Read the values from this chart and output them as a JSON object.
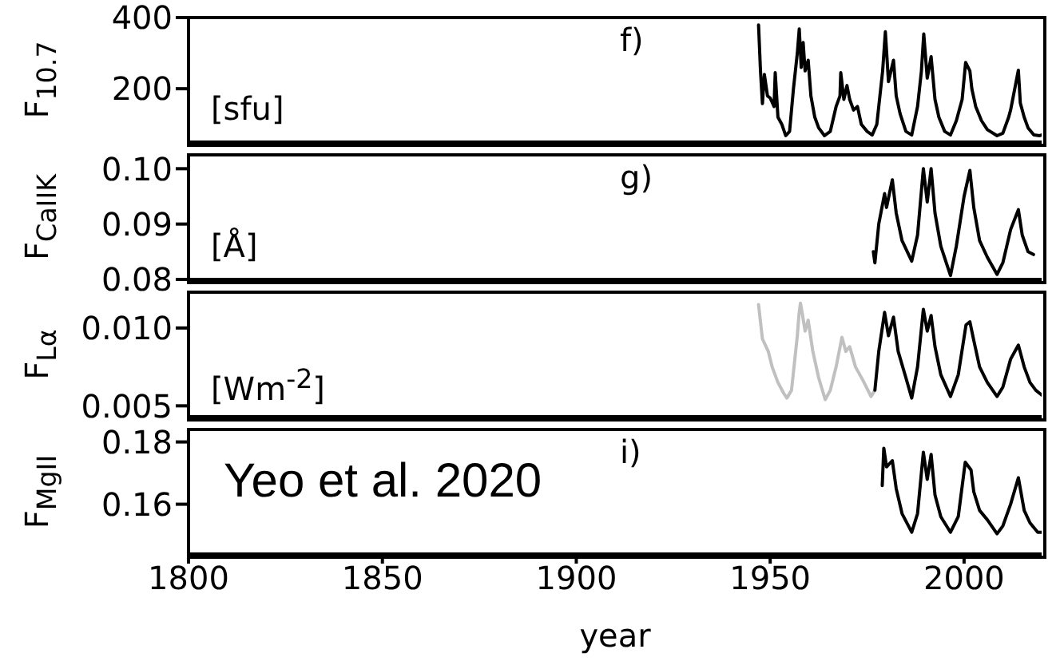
{
  "chart_data": [
    {
      "type": "line",
      "title": "f)",
      "ylabel": "F$_{10.7}$",
      "annotations": [
        "[sfu]"
      ],
      "xlim": [
        1800,
        2020
      ],
      "xticks": [
        1800,
        1850,
        1900,
        1950,
        2000
      ],
      "ylim": [
        50,
        400
      ],
      "yticks": [
        200,
        400
      ],
      "tick_labels": "y",
      "series": [
        {
          "color": "#000000",
          "x": [
            1947,
            1947.5,
            1948,
            1948.5,
            1949.3,
            1950,
            1951,
            1951.3,
            1952,
            1953,
            1954,
            1955,
            1956,
            1957,
            1957.5,
            1958,
            1958.5,
            1959,
            1959.8,
            1960.5,
            1961.5,
            1962.5,
            1964,
            1965.5,
            1967,
            1968,
            1968.2,
            1969,
            1969.8,
            1970.5,
            1971.5,
            1972.5,
            1973.5,
            1975,
            1976.3,
            1977.5,
            1978.5,
            1979,
            1979.7,
            1980.5,
            1981.8,
            1982.5,
            1983.5,
            1985,
            1986.5,
            1988,
            1989,
            1989.6,
            1990.5,
            1991.5,
            1992.5,
            1993.5,
            1995,
            1996.5,
            1998,
            1999.5,
            2000.4,
            2001.5,
            2002,
            2003,
            2004.5,
            2006,
            2008.5,
            2010,
            2011.5,
            2012,
            2014,
            2014.5,
            2015.5,
            2016.5,
            2018,
            2019.5,
            2020
          ],
          "values": [
            379,
            250,
            158,
            240,
            180,
            174,
            150,
            245,
            120,
            100,
            68,
            80,
            200,
            300,
            368,
            260,
            330,
            250,
            280,
            180,
            120,
            90,
            68,
            80,
            150,
            180,
            245,
            170,
            209,
            170,
            140,
            150,
            100,
            80,
            70,
            100,
            200,
            250,
            360,
            220,
            280,
            180,
            130,
            80,
            70,
            150,
            250,
            354,
            230,
            290,
            170,
            120,
            80,
            70,
            110,
            170,
            274,
            250,
            200,
            150,
            110,
            85,
            68,
            75,
            120,
            140,
            252,
            160,
            120,
            90,
            70,
            68,
            70
          ]
        }
      ]
    },
    {
      "type": "line",
      "title": "g)",
      "ylabel": "F$_{CaIIK}$",
      "annotations": [
        "[Å]"
      ],
      "xlim": [
        1800,
        2020
      ],
      "xticks": [
        1800,
        1850,
        1900,
        1950,
        2000
      ],
      "ylim": [
        0.08,
        0.1025
      ],
      "yticks": [
        0.08,
        0.09,
        {
          "value": 0.1,
          "label": "0.10"
        }
      ],
      "tick_labels": "y",
      "series": [
        {
          "color": "#000000",
          "x": [
            1976.6,
            1977,
            1978,
            1979.5,
            1980,
            1981.5,
            1982.5,
            1984,
            1986.5,
            1988,
            1989.5,
            1990.5,
            1991.5,
            1992.5,
            1994,
            1996.5,
            1998,
            2000,
            2001.5,
            2002.5,
            2004,
            2006,
            2008.5,
            2010,
            2012,
            2014,
            2015,
            2016.5,
            2017.9
          ],
          "values": [
            0.085,
            0.083,
            0.09,
            0.0955,
            0.093,
            0.098,
            0.092,
            0.087,
            0.0833,
            0.088,
            0.1,
            0.094,
            0.1,
            0.092,
            0.086,
            0.0807,
            0.086,
            0.095,
            0.0997,
            0.093,
            0.087,
            0.084,
            0.0809,
            0.083,
            0.089,
            0.0926,
            0.088,
            0.085,
            0.0845
          ]
        }
      ]
    },
    {
      "type": "line",
      "ylabel": "F$_{Lα}$",
      "annotations": [
        "[Wm$^{-2}$]"
      ],
      "xlim": [
        1800,
        2020
      ],
      "xticks": [
        1800,
        1850,
        1900,
        1950,
        2000
      ],
      "ylim": [
        0.0043,
        0.0123
      ],
      "yticks": [
        0.005,
        {
          "value": 0.01,
          "label": "0.010"
        }
      ],
      "tick_labels": "y",
      "series": [
        {
          "color": "#c0c0c0",
          "x": [
            1947,
            1948,
            1949.5,
            1950.5,
            1952,
            1953.5,
            1954.3,
            1955.5,
            1957,
            1957.4,
            1957.8,
            1958.3,
            1959,
            1959.8,
            1961,
            1962.5,
            1964.2,
            1965.5,
            1967,
            1968.5,
            1969.5,
            1970.5,
            1972,
            1974,
            1976,
            1977
          ],
          "values": [
            0.0115,
            0.0093,
            0.0085,
            0.0075,
            0.0065,
            0.0058,
            0.0055,
            0.006,
            0.0095,
            0.0108,
            0.0116,
            0.0109,
            0.0098,
            0.0105,
            0.0085,
            0.0068,
            0.0054,
            0.006,
            0.0075,
            0.0094,
            0.0085,
            0.0088,
            0.0075,
            0.0066,
            0.0056,
            0.006
          ]
        },
        {
          "color": "#000000",
          "x": [
            1977,
            1978,
            1979.5,
            1980.5,
            1981.8,
            1983,
            1985,
            1986.5,
            1988,
            1989.5,
            1990.5,
            1991.5,
            1992.5,
            1994,
            1996.5,
            1998.5,
            2000.5,
            2001.5,
            2002.5,
            2004,
            2006,
            2008.5,
            2010,
            2012,
            2014,
            2015.5,
            2017,
            2018.5,
            2020
          ],
          "values": [
            0.006,
            0.0085,
            0.011,
            0.0095,
            0.0107,
            0.0085,
            0.0068,
            0.0055,
            0.0075,
            0.0112,
            0.0098,
            0.0108,
            0.0088,
            0.007,
            0.0056,
            0.007,
            0.0102,
            0.0104,
            0.0092,
            0.0075,
            0.0065,
            0.0056,
            0.0062,
            0.008,
            0.0089,
            0.0075,
            0.0065,
            0.006,
            0.0057
          ]
        }
      ]
    },
    {
      "type": "line",
      "title": "i)",
      "ylabel": "F$_{MgII}$",
      "xlabel": "year",
      "annotations": [
        "Yeo et al. 2020"
      ],
      "xlim": [
        1800,
        2020
      ],
      "xticks": [
        1800,
        1850,
        1900,
        1950,
        2000
      ],
      "ylim": [
        0.144,
        0.184
      ],
      "yticks": [
        0.16,
        0.18
      ],
      "series": [
        {
          "color": "#000000",
          "x": [
            1978.9,
            1979.3,
            1980,
            1981.5,
            1982.5,
            1984,
            1986.5,
            1988,
            1989.5,
            1990.5,
            1991.5,
            1992.5,
            1994,
            1996.5,
            1998.5,
            2000.3,
            2001.8,
            2002.5,
            2004,
            2006,
            2008.5,
            2010,
            2012,
            2014,
            2015.5,
            2017,
            2019,
            2020
          ],
          "values": [
            0.166,
            0.178,
            0.172,
            0.174,
            0.165,
            0.157,
            0.151,
            0.157,
            0.1767,
            0.168,
            0.176,
            0.163,
            0.156,
            0.151,
            0.156,
            0.1735,
            0.171,
            0.164,
            0.158,
            0.155,
            0.1505,
            0.153,
            0.16,
            0.1685,
            0.158,
            0.154,
            0.151,
            0.151
          ]
        }
      ]
    }
  ]
}
